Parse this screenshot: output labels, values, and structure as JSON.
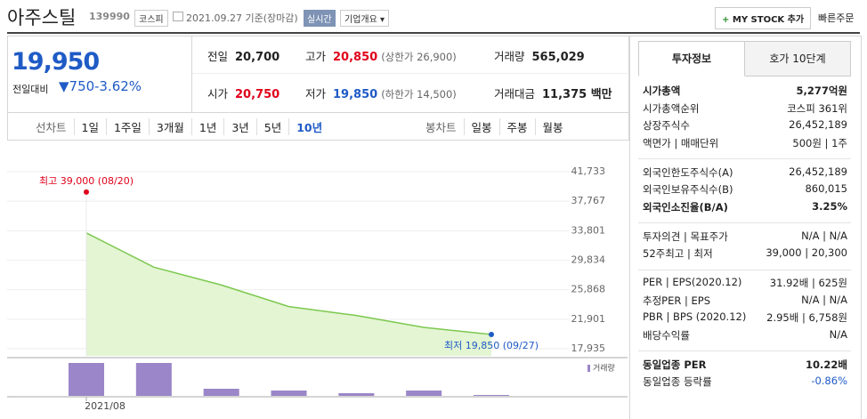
{
  "header": {
    "name": "아주스틸",
    "code": "139990",
    "market": "코스피",
    "date": "2021.09.27 기준(장마감)",
    "realtime": "실시간",
    "company": "기업개요",
    "mystock": "MY STOCK 추가",
    "quick_order": "빠른주문"
  },
  "price": {
    "current": "19,950",
    "change_label": "전일대비",
    "change": "750",
    "rate": "-3.62%"
  },
  "quotes": [
    [
      {
        "label": "전일",
        "value": "20,700"
      },
      {
        "label": "고가",
        "value": "20,850",
        "note": "(상한가 26,900)",
        "color": "#e0001a"
      },
      {
        "label": "거래량",
        "value": "565,029"
      }
    ],
    [
      {
        "label": "시가",
        "value": "20,750",
        "color": "#e0001a"
      },
      {
        "label": "저가",
        "value": "19,850",
        "note": "(하한가 14,500)",
        "color": "#1f5bc6"
      },
      {
        "label": "거래대금",
        "value": "11,375 백만"
      }
    ]
  ],
  "periods": {
    "line_label": "선차트",
    "line": [
      "1일",
      "1주일",
      "3개월",
      "1년",
      "3년",
      "5년",
      "10년"
    ],
    "selected": "10년",
    "candle_label": "봉차트",
    "candle": [
      "일봉",
      "주봉",
      "월봉"
    ]
  },
  "chart_data": {
    "type": "line",
    "categories": [
      "2021/08",
      null,
      null,
      null,
      null,
      null,
      null
    ],
    "values": [
      33500,
      28900,
      26500,
      23600,
      22400,
      20800,
      19850
    ],
    "color": "#7cc84f",
    "ylim": [
      17935,
      41733
    ],
    "yticks": [
      {
        "value": 41733,
        "label": "41,733"
      },
      {
        "value": 37767,
        "label": "37,767"
      },
      {
        "value": 33801,
        "label": "33,801"
      },
      {
        "value": 29834,
        "label": "29,834"
      },
      {
        "value": 25868,
        "label": "25,868"
      },
      {
        "value": 21901,
        "label": "21,901"
      },
      {
        "value": 17935,
        "label": "17,935"
      }
    ],
    "grid": true,
    "high": {
      "text": "최고 39,000 (08/20)",
      "value": 39000,
      "color": "#e0001a"
    },
    "low": {
      "text": "최저 19,850 (09/27)",
      "value": 19850,
      "color": "#1f5bc6"
    },
    "volume": {
      "name": "거래량",
      "color": "#9a86c8",
      "values": [
        3700,
        3700,
        800,
        600,
        300,
        600,
        100
      ]
    }
  },
  "info": {
    "tabs": [
      "투자정보",
      "호가 10단계"
    ],
    "sections": [
      [
        {
          "label": "시가총액",
          "value": "5,277억원",
          "bold": true
        },
        {
          "label": "시가총액순위",
          "value": "코스피 361위"
        },
        {
          "label": "상장주식수",
          "value": "26,452,189"
        },
        {
          "label": "액면가 | 매매단위",
          "value": "500원 | 1주"
        }
      ],
      [
        {
          "label": "외국인한도주식수(A)",
          "value": "26,452,189"
        },
        {
          "label": "외국인보유주식수(B)",
          "value": "860,015"
        },
        {
          "label": "외국인소진율(B/A)",
          "value": "3.25%",
          "bold": true
        }
      ],
      [
        {
          "label": "투자의견 | 목표주가",
          "value": "N/A | N/A"
        },
        {
          "label": "52주최고 | 최저",
          "value": "39,000 | 20,300"
        }
      ],
      [
        {
          "label": "PER | EPS(2020.12)",
          "value": "31.92배 | 625원"
        },
        {
          "label": "추정PER | EPS",
          "value": "N/A | N/A"
        },
        {
          "label": "PBR | BPS (2020.12)",
          "value": "2.95배 | 6,758원"
        },
        {
          "label": "배당수익률",
          "value": "N/A"
        }
      ],
      [
        {
          "label": "동일업종 PER",
          "value": "10.22배",
          "bold": true
        },
        {
          "label": "동일업종 등락률",
          "value": "-0.86%",
          "color": "#1f5bc6"
        }
      ]
    ]
  }
}
